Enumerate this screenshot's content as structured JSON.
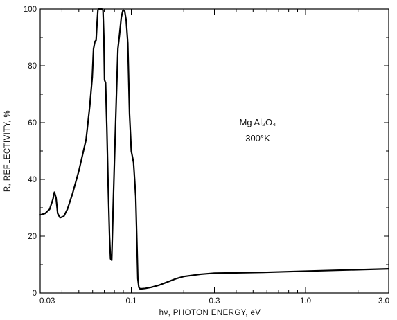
{
  "chart_data": {
    "type": "line",
    "title": "",
    "xlabel": "hν, PHOTON ENERGY, eV",
    "ylabel": "R, REFLECTIVITY, %",
    "x_scale": "log",
    "xlim": [
      0.03,
      3.0
    ],
    "ylim": [
      0,
      100
    ],
    "x_ticks": [
      0.03,
      0.1,
      0.3,
      1.0,
      3.0
    ],
    "x_tick_labels": [
      "0.03",
      "0.1",
      "0.3",
      "1.0",
      "3.0"
    ],
    "y_ticks": [
      0,
      20,
      40,
      60,
      80,
      100
    ],
    "y_tick_labels": [
      "0",
      "20",
      "40",
      "60",
      "80",
      "100"
    ],
    "grid": false,
    "annotations": [
      {
        "text": "Mg Al₂O₄"
      },
      {
        "text": "300°K"
      }
    ],
    "series": [
      {
        "color": "#000000",
        "x": [
          0.03,
          0.032,
          0.034,
          0.0355,
          0.0362,
          0.037,
          0.0378,
          0.039,
          0.041,
          0.043,
          0.046,
          0.05,
          0.055,
          0.0578,
          0.0597,
          0.0607,
          0.0618,
          0.0628,
          0.0636,
          0.0643,
          0.065,
          0.0658,
          0.0665,
          0.0677,
          0.0688,
          0.0696,
          0.0702,
          0.0712,
          0.0724,
          0.0735,
          0.075,
          0.076,
          0.0772,
          0.0785,
          0.08,
          0.082,
          0.0838,
          0.0856,
          0.0876,
          0.0895,
          0.0915,
          0.0935,
          0.0955,
          0.0977,
          0.1,
          0.103,
          0.106,
          0.108,
          0.109,
          0.1105,
          0.112,
          0.115,
          0.12,
          0.13,
          0.145,
          0.16,
          0.18,
          0.2,
          0.25,
          0.3,
          0.4,
          0.6,
          1.0,
          1.5,
          2.0,
          3.0
        ],
        "y": [
          27.5,
          28.0,
          29.5,
          33.0,
          35.5,
          33.5,
          28.0,
          26.5,
          27.0,
          29.5,
          35.0,
          43.0,
          54.0,
          66.0,
          76.0,
          86.0,
          88.5,
          89.0,
          95.0,
          99.5,
          100.0,
          100.0,
          100.0,
          100.0,
          99.5,
          90.0,
          75.0,
          74.0,
          58.0,
          40.0,
          20.0,
          12.0,
          11.5,
          28.0,
          46.0,
          68.0,
          86.0,
          91.0,
          97.0,
          99.5,
          99.5,
          96.0,
          88.0,
          63.0,
          50.0,
          46.0,
          34.0,
          15.0,
          5.0,
          2.0,
          1.5,
          1.5,
          1.6,
          2.0,
          2.8,
          3.8,
          5.0,
          5.8,
          6.6,
          7.0,
          7.1,
          7.3,
          7.7,
          8.0,
          8.2,
          8.5
        ]
      }
    ]
  }
}
